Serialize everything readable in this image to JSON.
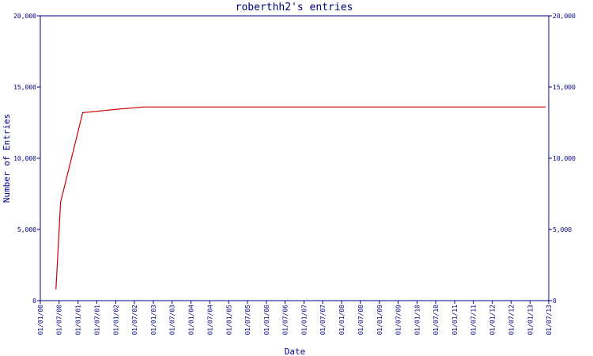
{
  "chart_data": {
    "type": "line",
    "title": "roberthh2's entries",
    "xlabel": "Date",
    "ylabel": "Number of Entries",
    "ylim": [
      0,
      20000
    ],
    "y_ticks": [
      0,
      5000,
      10000,
      15000,
      20000
    ],
    "y_tick_labels": [
      "0",
      "5,000",
      "10,000",
      "15,000",
      "20,000"
    ],
    "right_axis": true,
    "grid": false,
    "x_ticks": [
      "01/01/00",
      "01/07/00",
      "01/01/01",
      "01/07/01",
      "01/01/02",
      "01/07/02",
      "01/01/03",
      "01/07/03",
      "01/01/04",
      "01/07/04",
      "01/01/05",
      "01/07/05",
      "01/01/06",
      "01/07/06",
      "01/01/07",
      "01/07/07",
      "01/01/08",
      "01/07/08",
      "01/01/09",
      "01/07/09",
      "01/01/10",
      "01/07/10",
      "01/01/11",
      "01/07/11",
      "01/01/12",
      "01/07/12",
      "01/01/13",
      "01/07/13"
    ],
    "series": [
      {
        "color": "#cc0000",
        "points": [
          {
            "x": "2000-06-01",
            "y": 800
          },
          {
            "x": "2000-07-15",
            "y": 6900
          },
          {
            "x": "2001-02-15",
            "y": 13200
          },
          {
            "x": "2002-02-01",
            "y": 13450
          },
          {
            "x": "2002-10-01",
            "y": 13600
          },
          {
            "x": "2013-06-01",
            "y": 13600
          }
        ]
      }
    ]
  }
}
